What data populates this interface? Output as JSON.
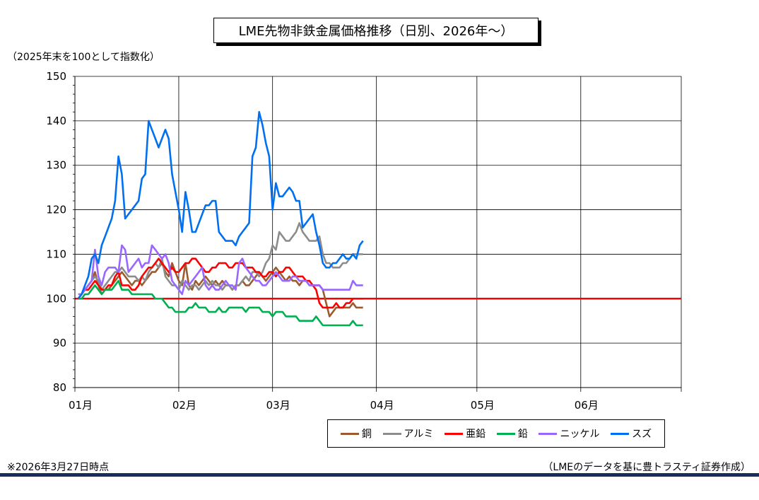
{
  "chart_data": {
    "type": "line",
    "title": "LME先物非鉄金属価格推移（日別、2026年～）",
    "ylabel": "（2025年末を100として指数化）",
    "ylim": [
      80,
      150
    ],
    "yticks": [
      "80",
      "90",
      "100",
      "110",
      "120",
      "130",
      "140",
      "150"
    ],
    "xticks": [
      "01月",
      "02月",
      "03月",
      "04月",
      "05月",
      "06月"
    ],
    "xlim_days": [
      0,
      181
    ],
    "grid": true,
    "legend_position": "bottom-right",
    "baseline": {
      "value": 100,
      "color": "#ff0000"
    },
    "series": [
      {
        "name": "銅",
        "color": "#9c5b2e",
        "x": [
          1,
          2,
          3,
          4,
          5,
          6,
          7,
          8,
          9,
          10,
          11,
          12,
          13,
          14,
          15,
          16,
          17,
          18,
          19,
          20,
          21,
          22,
          23,
          24,
          25,
          26,
          27,
          28,
          29,
          30,
          31,
          32,
          33,
          34,
          35,
          36,
          37,
          38,
          39,
          40,
          41,
          42,
          43,
          44,
          45,
          46,
          47,
          48,
          49,
          50,
          51,
          52,
          53,
          54,
          55,
          56,
          57,
          58,
          59,
          60,
          61,
          62,
          63,
          64,
          65,
          66,
          67,
          68,
          69,
          70,
          71,
          72,
          73,
          74,
          75,
          76,
          77,
          78,
          79,
          80,
          81,
          82,
          83,
          84,
          85,
          86
        ],
        "y": [
          100,
          101,
          102,
          103,
          104,
          106,
          103,
          101,
          102,
          102,
          103,
          104,
          105,
          106,
          105,
          104,
          103,
          104,
          104,
          103,
          104,
          105,
          106,
          106,
          107,
          108,
          106,
          105,
          108,
          106,
          104,
          103,
          108,
          103,
          102,
          104,
          103,
          104,
          105,
          104,
          103,
          104,
          103,
          104,
          103,
          103,
          102,
          103,
          103,
          104,
          103,
          103,
          104,
          105,
          106,
          105,
          104,
          105,
          106,
          107,
          106,
          105,
          104,
          105,
          104,
          104,
          103,
          104,
          104,
          103,
          103,
          103,
          103,
          102,
          99,
          96,
          97,
          98,
          98,
          98,
          98,
          98,
          99,
          98,
          98,
          98
        ]
      },
      {
        "name": "アルミ",
        "color": "#8c8c8c",
        "x": [
          1,
          2,
          3,
          4,
          5,
          6,
          7,
          8,
          9,
          10,
          11,
          12,
          13,
          14,
          15,
          16,
          17,
          18,
          19,
          20,
          21,
          22,
          23,
          24,
          25,
          26,
          27,
          28,
          29,
          30,
          31,
          32,
          33,
          34,
          35,
          36,
          37,
          38,
          39,
          40,
          41,
          42,
          43,
          44,
          45,
          46,
          47,
          48,
          49,
          50,
          51,
          52,
          53,
          54,
          55,
          56,
          57,
          58,
          59,
          60,
          61,
          62,
          63,
          64,
          65,
          66,
          67,
          68,
          69,
          70,
          71,
          72,
          73,
          74,
          75,
          76,
          77,
          78,
          79,
          80,
          81,
          82,
          83,
          84,
          85,
          86
        ],
        "y": [
          100,
          101,
          102,
          103,
          104,
          105,
          104,
          102,
          103,
          104,
          105,
          106,
          106,
          107,
          106,
          105,
          105,
          105,
          104,
          105,
          104,
          106,
          107,
          108,
          107,
          109,
          105,
          104,
          103,
          103,
          102,
          104,
          103,
          102,
          103,
          103,
          102,
          103,
          104,
          103,
          104,
          103,
          103,
          102,
          103,
          103,
          102,
          103,
          103,
          104,
          105,
          104,
          106,
          106,
          105,
          106,
          108,
          109,
          112,
          111,
          115,
          114,
          113,
          113,
          114,
          115,
          117,
          115,
          114,
          113,
          113,
          113,
          114,
          110,
          108,
          108,
          107,
          107,
          107,
          108,
          108,
          109,
          110,
          110,
          110,
          110
        ]
      },
      {
        "name": "亜鉛",
        "color": "#ff0000",
        "x": [
          1,
          2,
          3,
          4,
          5,
          6,
          7,
          8,
          9,
          10,
          11,
          12,
          13,
          14,
          15,
          16,
          17,
          18,
          19,
          20,
          21,
          22,
          23,
          24,
          25,
          26,
          27,
          28,
          29,
          30,
          31,
          32,
          33,
          34,
          35,
          36,
          37,
          38,
          39,
          40,
          41,
          42,
          43,
          44,
          45,
          46,
          47,
          48,
          49,
          50,
          51,
          52,
          53,
          54,
          55,
          56,
          57,
          58,
          59,
          60,
          61,
          62,
          63,
          64,
          65,
          66,
          67,
          68,
          69,
          70,
          71,
          72,
          73,
          74,
          75,
          76,
          77,
          78,
          79,
          80,
          81,
          82,
          83,
          84,
          85,
          86
        ],
        "y": [
          100,
          101,
          102,
          102,
          103,
          104,
          103,
          102,
          102,
          103,
          103,
          105,
          106,
          103,
          103,
          103,
          102,
          102,
          103,
          105,
          106,
          107,
          107,
          108,
          109,
          108,
          107,
          106,
          107,
          106,
          106,
          107,
          108,
          108,
          109,
          109,
          108,
          107,
          106,
          106,
          107,
          107,
          108,
          108,
          108,
          107,
          107,
          108,
          108,
          108,
          107,
          107,
          107,
          106,
          106,
          105,
          105,
          106,
          106,
          105,
          106,
          106,
          107,
          107,
          106,
          105,
          105,
          105,
          104,
          104,
          103,
          102,
          99,
          98,
          98,
          98,
          98,
          99,
          98,
          98,
          99,
          99,
          100,
          100,
          100,
          100
        ]
      },
      {
        "name": "鉛",
        "color": "#00b050",
        "x": [
          1,
          2,
          3,
          4,
          5,
          6,
          7,
          8,
          9,
          10,
          11,
          12,
          13,
          14,
          15,
          16,
          17,
          18,
          19,
          20,
          21,
          22,
          23,
          24,
          25,
          26,
          27,
          28,
          29,
          30,
          31,
          32,
          33,
          34,
          35,
          36,
          37,
          38,
          39,
          40,
          41,
          42,
          43,
          44,
          45,
          46,
          47,
          48,
          49,
          50,
          51,
          52,
          53,
          54,
          55,
          56,
          57,
          58,
          59,
          60,
          61,
          62,
          63,
          64,
          65,
          66,
          67,
          68,
          69,
          70,
          71,
          72,
          73,
          74,
          75,
          76,
          77,
          78,
          79,
          80,
          81,
          82,
          83,
          84,
          85,
          86
        ],
        "y": [
          100,
          100,
          101,
          101,
          102,
          103,
          102,
          101,
          102,
          102,
          102,
          103,
          104,
          102,
          102,
          102,
          101,
          101,
          101,
          101,
          101,
          101,
          101,
          100,
          100,
          100,
          99,
          98,
          98,
          97,
          97,
          97,
          97,
          98,
          98,
          99,
          98,
          98,
          98,
          97,
          97,
          97,
          98,
          97,
          97,
          98,
          98,
          98,
          98,
          98,
          97,
          98,
          98,
          98,
          98,
          97,
          97,
          97,
          96,
          97,
          97,
          97,
          96,
          96,
          96,
          96,
          95,
          95,
          95,
          95,
          95,
          96,
          95,
          94,
          94,
          94,
          94,
          94,
          94,
          94,
          94,
          94,
          95,
          94,
          94,
          94
        ]
      },
      {
        "name": "ニッケル",
        "color": "#9966ff",
        "x": [
          1,
          2,
          3,
          4,
          5,
          6,
          7,
          8,
          9,
          10,
          11,
          12,
          13,
          14,
          15,
          16,
          17,
          18,
          19,
          20,
          21,
          22,
          23,
          24,
          25,
          26,
          27,
          28,
          29,
          30,
          31,
          32,
          33,
          34,
          35,
          36,
          37,
          38,
          39,
          40,
          41,
          42,
          43,
          44,
          45,
          46,
          47,
          48,
          49,
          50,
          51,
          52,
          53,
          54,
          55,
          56,
          57,
          58,
          59,
          60,
          61,
          62,
          63,
          64,
          65,
          66,
          67,
          68,
          69,
          70,
          71,
          72,
          73,
          74,
          75,
          76,
          77,
          78,
          79,
          80,
          81,
          82,
          83,
          84,
          85,
          86
        ],
        "y": [
          101,
          101,
          102,
          103,
          104,
          111,
          105,
          103,
          106,
          107,
          107,
          107,
          106,
          112,
          111,
          106,
          107,
          108,
          109,
          107,
          108,
          108,
          112,
          111,
          110,
          109,
          110,
          108,
          104,
          103,
          102,
          101,
          104,
          103,
          104,
          105,
          106,
          107,
          103,
          102,
          103,
          102,
          102,
          103,
          104,
          103,
          103,
          102,
          108,
          109,
          107,
          106,
          105,
          104,
          104,
          103,
          103,
          104,
          105,
          106,
          105,
          104,
          104,
          104,
          105,
          105,
          104,
          104,
          104,
          103,
          103,
          103,
          103,
          102,
          102,
          102,
          102,
          102,
          102,
          102,
          102,
          102,
          104,
          103,
          103,
          103
        ]
      },
      {
        "name": "スズ",
        "color": "#0070f0",
        "x": [
          1,
          2,
          3,
          4,
          5,
          6,
          7,
          8,
          9,
          10,
          11,
          12,
          13,
          14,
          15,
          16,
          17,
          18,
          19,
          20,
          21,
          22,
          23,
          24,
          25,
          26,
          27,
          28,
          29,
          30,
          31,
          32,
          33,
          34,
          35,
          36,
          37,
          38,
          39,
          40,
          41,
          42,
          43,
          44,
          45,
          46,
          47,
          48,
          49,
          50,
          51,
          52,
          53,
          54,
          55,
          56,
          57,
          58,
          59,
          60,
          61,
          62,
          63,
          64,
          65,
          66,
          67,
          68,
          69,
          70,
          71,
          72,
          73,
          74,
          75,
          76,
          77,
          78,
          79,
          80,
          81,
          82,
          83,
          84,
          85,
          86
        ],
        "y": [
          100,
          101,
          103,
          105,
          109,
          110,
          108,
          112,
          114,
          116,
          118,
          122,
          132,
          128,
          118,
          119,
          120,
          121,
          122,
          127,
          128,
          140,
          138,
          136,
          134,
          136,
          138,
          136,
          128,
          124,
          120,
          115,
          124,
          120,
          115,
          115,
          117,
          119,
          121,
          121,
          122,
          122,
          115,
          114,
          113,
          113,
          113,
          112,
          114,
          115,
          116,
          117,
          132,
          134,
          142,
          139,
          135,
          132,
          120,
          126,
          123,
          123,
          124,
          125,
          124,
          122,
          122,
          116,
          117,
          118,
          119,
          115,
          112,
          108,
          107,
          107,
          108,
          108,
          109,
          110,
          109,
          109,
          110,
          109,
          112,
          113
        ]
      }
    ],
    "legend": [
      "銅",
      "アルミ",
      "亜鉛",
      "鉛",
      "ニッケル",
      "スズ"
    ]
  },
  "notes": {
    "left": "※2026年3月27日時点",
    "right": "（LMEのデータを基に豊トラスティ証券作成）"
  }
}
